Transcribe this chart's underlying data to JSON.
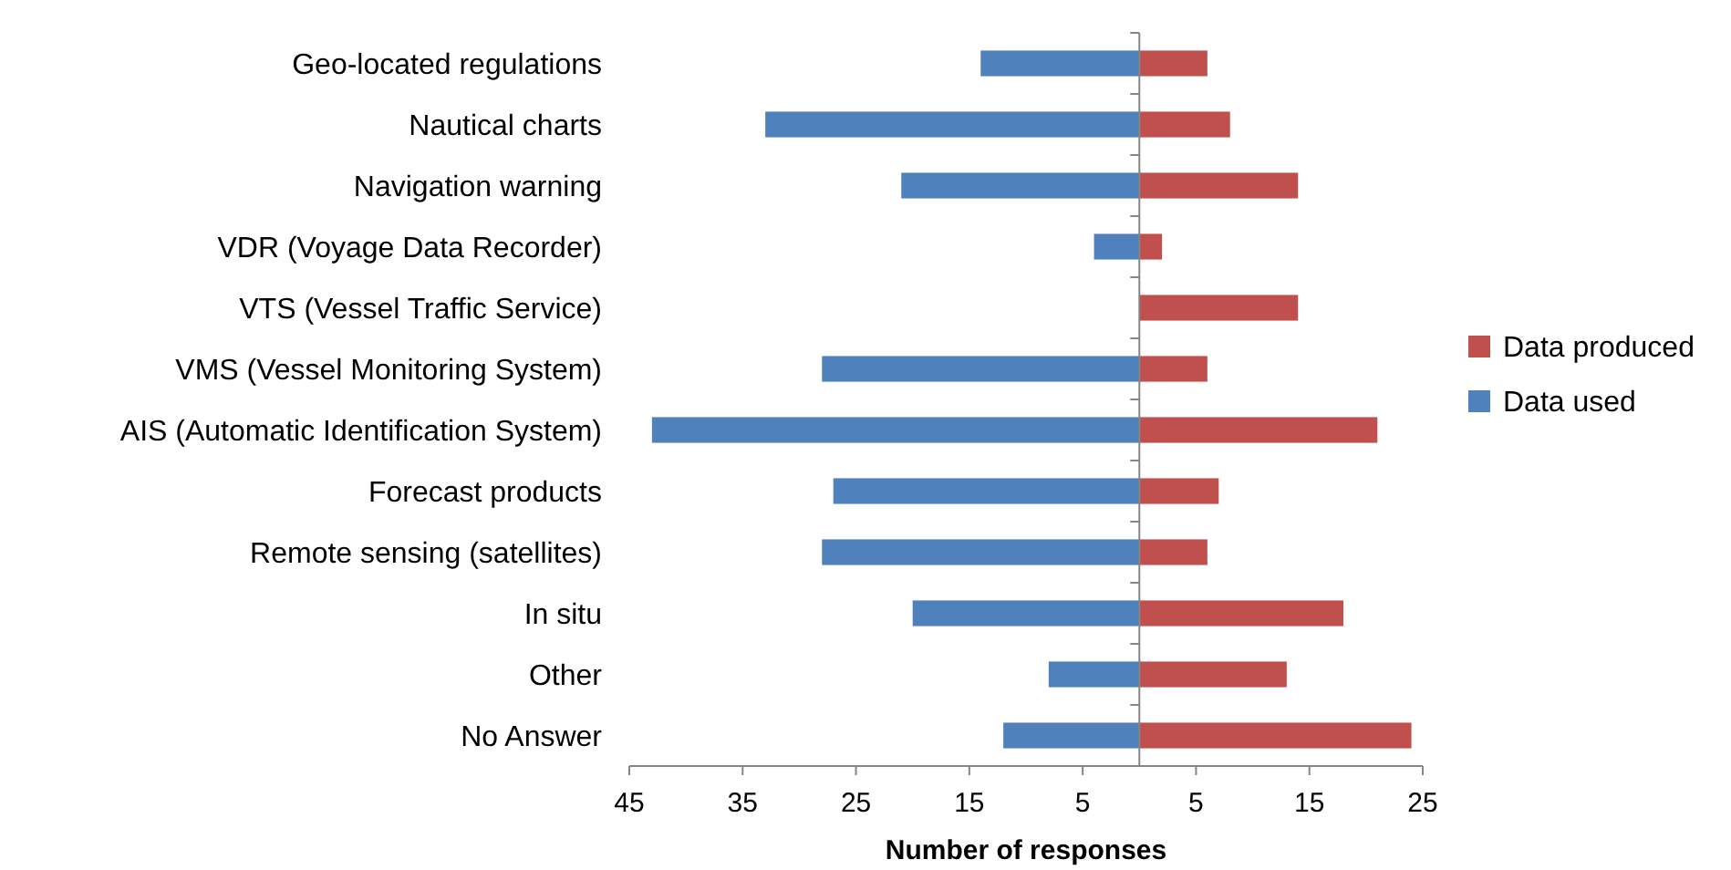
{
  "chart_data": {
    "type": "bar",
    "orientation": "horizontal",
    "xlabel": "Number of responses",
    "categories": [
      "Geo-located regulations",
      "Nautical charts",
      "Navigation warning",
      "VDR (Voyage Data Recorder)",
      "VTS (Vessel Traffic Service)",
      "VMS (Vessel Monitoring System)",
      "AIS (Automatic Identification System)",
      "Forecast products",
      "Remote sensing (satellites)",
      "In situ",
      "Other",
      "No Answer"
    ],
    "series": [
      {
        "name": "Data produced",
        "color": "#c0504d",
        "values": [
          6,
          8,
          14,
          2,
          14,
          6,
          21,
          7,
          6,
          18,
          13,
          24
        ]
      },
      {
        "name": "Data used",
        "color": "#4f81bd",
        "values": [
          -14,
          -33,
          -21,
          -4,
          0,
          -28,
          -43,
          -27,
          -28,
          -20,
          -8,
          -12
        ]
      }
    ],
    "xlim": [
      -45,
      25
    ],
    "xticks": [
      {
        "value": -45,
        "label": "45"
      },
      {
        "value": -35,
        "label": "35"
      },
      {
        "value": -25,
        "label": "25"
      },
      {
        "value": -15,
        "label": "15"
      },
      {
        "value": -5,
        "label": "5"
      },
      {
        "value": 5,
        "label": "5"
      },
      {
        "value": 15,
        "label": "15"
      },
      {
        "value": 25,
        "label": "25"
      }
    ],
    "stacked": true,
    "grid": false,
    "legend": "right"
  }
}
